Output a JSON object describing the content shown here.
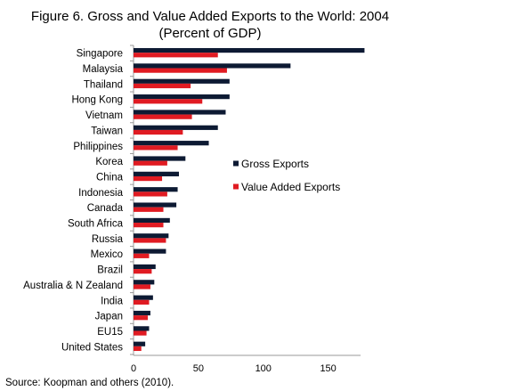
{
  "chart_data": {
    "type": "bar",
    "orientation": "horizontal",
    "title": "Figure 6. Gross and Value Added Exports to the World: 2004",
    "subtitle": "(Percent of GDP)",
    "categories": [
      "Singapore",
      "Malaysia",
      "Thailand",
      "Hong Kong",
      "Vietnam",
      "Taiwan",
      "Philippines",
      "Korea",
      "China",
      "Indonesia",
      "Canada",
      "South Africa",
      "Russia",
      "Mexico",
      "Brazil",
      "Australia & N Zealand",
      "India",
      "Japan",
      "EU15",
      "United States"
    ],
    "series": [
      {
        "name": "Gross Exports",
        "color": "#0d1a33",
        "values": [
          178,
          121,
          74,
          74,
          71,
          65,
          58,
          40,
          35,
          34,
          33,
          28,
          27,
          25,
          17,
          16,
          15,
          13,
          12,
          9
        ]
      },
      {
        "name": "Value Added Exports",
        "color": "#e01b22",
        "values": [
          65,
          72,
          44,
          53,
          45,
          38,
          34,
          26,
          22,
          26,
          23,
          23,
          25,
          12,
          14,
          13,
          12,
          11,
          10,
          6
        ]
      }
    ],
    "xlim": [
      0,
      175
    ],
    "xticks": [
      0,
      50,
      100,
      150
    ],
    "xlabel": "",
    "ylabel": "",
    "grid": false,
    "legend_position": "right"
  },
  "source": "Source: Koopman and others (2010)."
}
